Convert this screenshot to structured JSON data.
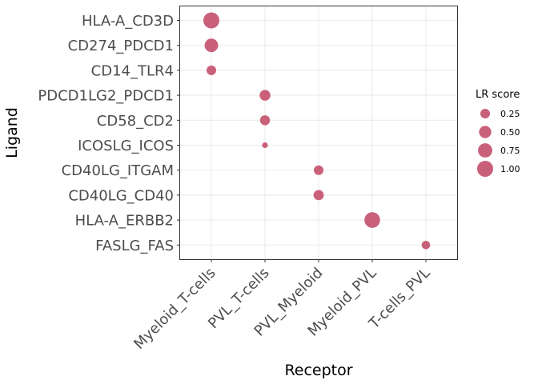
{
  "chart_data": {
    "type": "scatter",
    "subtype": "bubble",
    "xlabel": "Receptor",
    "ylabel": "Ligand",
    "x_categories": [
      "Myeloid_T-cells",
      "PVL_T-cells",
      "PVL_Myeloid",
      "Myeloid_PVL",
      "T-cells_PVL"
    ],
    "y_categories": [
      "HLA-A_CD3D",
      "CD274_PDCD1",
      "CD14_TLR4",
      "PDCD1LG2_PDCD1",
      "CD58_CD2",
      "ICOSLG_ICOS",
      "CD40LG_ITGAM",
      "CD40LG_CD40",
      "HLA-A_ERBB2",
      "FASLG_FAS"
    ],
    "points": [
      {
        "x": "Myeloid_T-cells",
        "y": "HLA-A_CD3D",
        "size": 1.0
      },
      {
        "x": "Myeloid_T-cells",
        "y": "CD274_PDCD1",
        "size": 0.65
      },
      {
        "x": "Myeloid_T-cells",
        "y": "CD14_TLR4",
        "size": 0.25
      },
      {
        "x": "PVL_T-cells",
        "y": "PDCD1LG2_PDCD1",
        "size": 0.35
      },
      {
        "x": "PVL_T-cells",
        "y": "CD58_CD2",
        "size": 0.28
      },
      {
        "x": "PVL_T-cells",
        "y": "ICOSLG_ICOS",
        "size": 0.04
      },
      {
        "x": "PVL_Myeloid",
        "y": "CD40LG_ITGAM",
        "size": 0.25
      },
      {
        "x": "PVL_Myeloid",
        "y": "CD40LG_CD40",
        "size": 0.3
      },
      {
        "x": "Myeloid_PVL",
        "y": "HLA-A_ERBB2",
        "size": 0.95
      },
      {
        "x": "T-cells_PVL",
        "y": "FASLG_FAS",
        "size": 0.17
      }
    ],
    "point_color": "#c9607a",
    "grid": true,
    "legend": {
      "title": "LR score",
      "placement": "right",
      "entries": [
        {
          "value": 0.25,
          "label": "0.25"
        },
        {
          "value": 0.5,
          "label": "0.50"
        },
        {
          "value": 0.75,
          "label": "0.75"
        },
        {
          "value": 1.0,
          "label": "1.00"
        }
      ]
    }
  }
}
